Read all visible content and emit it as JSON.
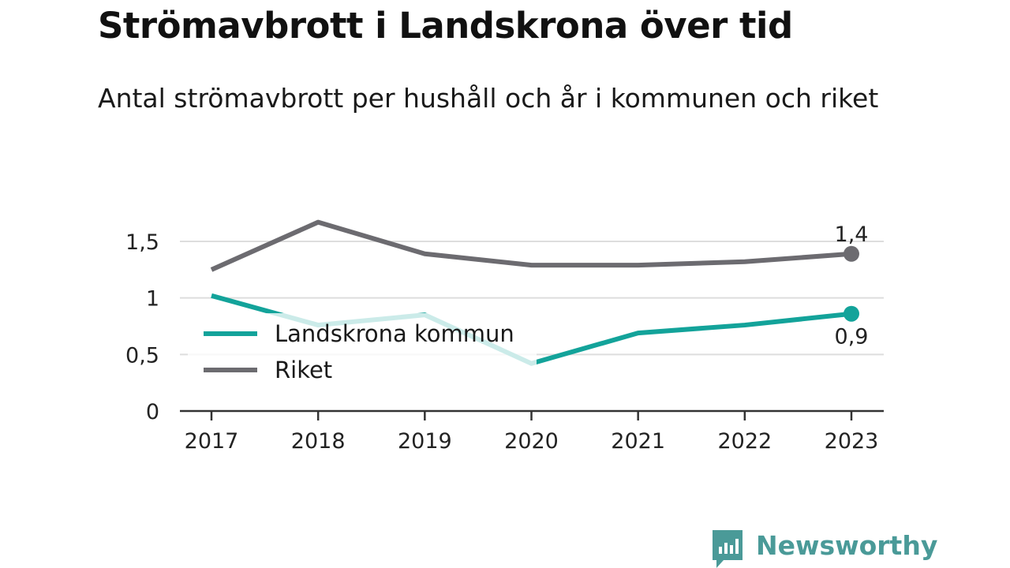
{
  "header": {
    "title": "Strömavbrott i Landskrona över tid",
    "subtitle": "Antal strömavbrott per hushåll och år i kommunen och riket"
  },
  "chart_data": {
    "type": "line",
    "title": "Strömavbrott i Landskrona över tid",
    "subtitle": "Antal strömavbrott per hushåll och år i kommunen och riket",
    "xlabel": "",
    "ylabel": "",
    "x": [
      "2017",
      "2018",
      "2019",
      "2020",
      "2021",
      "2022",
      "2023"
    ],
    "ylim": [
      0,
      1.75
    ],
    "yticks": [
      0,
      0.5,
      1,
      1.5
    ],
    "ytick_labels": [
      "0",
      "0,5",
      "1",
      "1,5"
    ],
    "grid": true,
    "legend_position": "left-center",
    "series": [
      {
        "name": "Landskrona kommun",
        "color": "#13a39a",
        "values": [
          1.02,
          0.76,
          0.85,
          0.42,
          0.69,
          0.76,
          0.86
        ],
        "end_label": "0,9"
      },
      {
        "name": "Riket",
        "color": "#6c6b70",
        "values": [
          1.25,
          1.67,
          1.39,
          1.29,
          1.29,
          1.32,
          1.39
        ],
        "end_label": "1,4"
      }
    ]
  },
  "brand": {
    "name": "Newsworthy",
    "color": "#4a9a98",
    "icon": "bar-chart-speech-bubble-icon"
  }
}
